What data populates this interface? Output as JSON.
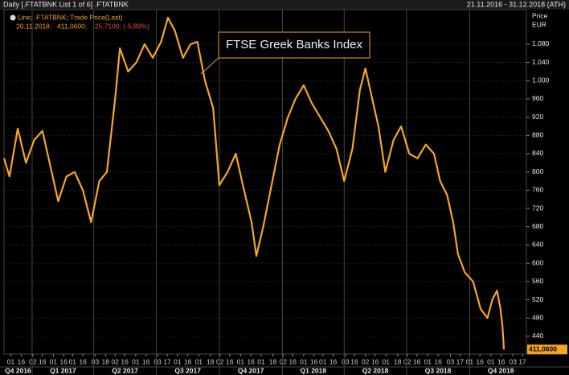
{
  "chart_data": {
    "type": "line",
    "title": "Daily [.FTATBNK List 1 of 6] .FTATBNK",
    "date_range": "21.11.2016 - 31.12.2018 (ATH)",
    "legend_line": "Line; .FTATBNK; Trade Price(Last)",
    "legend_date": "20.11.2018;",
    "legend_value": "411,0600;",
    "legend_change": "-25,7100; (-5,89%)",
    "annotation": "FTSE Greek Banks Index",
    "y_axis_label": "Price",
    "y_axis_unit": "EUR",
    "last_label": "411,0600",
    "grid": true,
    "xlim": [
      "2016-11-21",
      "2018-12-31"
    ],
    "ylim": [
      401,
      1145
    ],
    "yticks": [
      {
        "value": 1080,
        "label": "1.080"
      },
      {
        "value": 1040,
        "label": "1.040"
      },
      {
        "value": 1000,
        "label": "1.000"
      },
      960,
      920,
      880,
      840,
      800,
      760,
      720,
      680,
      640,
      600,
      560,
      520,
      480,
      440
    ],
    "xticks": [
      {
        "value": "2016-12-01",
        "label": "01"
      },
      {
        "value": "2016-12-16",
        "label": "16"
      },
      {
        "value": "2017-01-02",
        "label": "02"
      },
      {
        "value": "2017-01-16",
        "label": "16"
      },
      {
        "value": "2017-02-01",
        "label": "01"
      },
      {
        "value": "2017-02-16",
        "label": "16"
      },
      {
        "value": "2017-03-01",
        "label": "01"
      },
      {
        "value": "2017-03-16",
        "label": "16"
      },
      {
        "value": "2017-04-03",
        "label": "03"
      },
      {
        "value": "2017-04-18",
        "label": "18"
      },
      {
        "value": "2017-05-02",
        "label": "02"
      },
      {
        "value": "2017-05-16",
        "label": "16"
      },
      {
        "value": "2017-06-01",
        "label": "01"
      },
      {
        "value": "2017-06-16",
        "label": "16"
      },
      {
        "value": "2017-07-03",
        "label": "03"
      },
      {
        "value": "2017-07-17",
        "label": "17"
      },
      {
        "value": "2017-08-01",
        "label": "01"
      },
      {
        "value": "2017-08-16",
        "label": "16"
      },
      {
        "value": "2017-09-01",
        "label": "01"
      },
      {
        "value": "2017-09-18",
        "label": "18"
      },
      {
        "value": "2017-10-02",
        "label": "02"
      },
      {
        "value": "2017-10-16",
        "label": "16"
      },
      {
        "value": "2017-11-01",
        "label": "01"
      },
      {
        "value": "2017-11-16",
        "label": "16"
      },
      {
        "value": "2017-12-01",
        "label": "01"
      },
      {
        "value": "2017-12-18",
        "label": "18"
      },
      {
        "value": "2018-01-02",
        "label": "02"
      },
      {
        "value": "2018-01-16",
        "label": "16"
      },
      {
        "value": "2018-02-01",
        "label": "01"
      },
      {
        "value": "2018-02-16",
        "label": "16"
      },
      {
        "value": "2018-03-01",
        "label": "01"
      },
      {
        "value": "2018-03-16",
        "label": "16"
      },
      {
        "value": "2018-04-03",
        "label": "03"
      },
      {
        "value": "2018-04-16",
        "label": "16"
      },
      {
        "value": "2018-05-02",
        "label": "02"
      },
      {
        "value": "2018-05-16",
        "label": "16"
      },
      {
        "value": "2018-06-01",
        "label": "01"
      },
      {
        "value": "2018-06-18",
        "label": "18"
      },
      {
        "value": "2018-07-02",
        "label": "02"
      },
      {
        "value": "2018-07-16",
        "label": "16"
      },
      {
        "value": "2018-08-01",
        "label": "01"
      },
      {
        "value": "2018-08-16",
        "label": "16"
      },
      {
        "value": "2018-09-03",
        "label": "03"
      },
      {
        "value": "2018-09-17",
        "label": "17"
      },
      {
        "value": "2018-10-01",
        "label": "01"
      },
      {
        "value": "2018-10-16",
        "label": "16"
      },
      {
        "value": "2018-11-01",
        "label": "01"
      },
      {
        "value": "2018-11-16",
        "label": "16"
      },
      {
        "value": "2018-12-03",
        "label": "03"
      },
      {
        "value": "2018-12-17",
        "label": "17"
      }
    ],
    "quarters": [
      {
        "value": "2016-10-01",
        "label": "Q4 2016"
      },
      {
        "value": "2017-01-01",
        "label": "Q1 2017"
      },
      {
        "value": "2017-04-01",
        "label": "Q2 2017"
      },
      {
        "value": "2017-07-01",
        "label": "Q3 2017"
      },
      {
        "value": "2017-10-01",
        "label": "Q4 2017"
      },
      {
        "value": "2018-01-01",
        "label": "Q1 2018"
      },
      {
        "value": "2018-04-01",
        "label": "Q2 2018"
      },
      {
        "value": "2018-07-01",
        "label": "Q3 2018"
      },
      {
        "value": "2018-10-01",
        "label": "Q4 2018"
      }
    ],
    "series": [
      {
        "name": ".FTATBNK",
        "color": "#f5a623",
        "x": [
          "2016-11-21",
          "2016-11-29",
          "2016-12-11",
          "2016-12-23",
          "2017-01-04",
          "2017-01-16",
          "2017-01-28",
          "2017-02-08",
          "2017-02-20",
          "2017-03-04",
          "2017-03-16",
          "2017-03-28",
          "2017-04-09",
          "2017-04-20",
          "2017-05-02",
          "2017-05-09",
          "2017-05-21",
          "2017-06-02",
          "2017-06-14",
          "2017-06-26",
          "2017-07-08",
          "2017-07-18",
          "2017-07-28",
          "2017-08-09",
          "2017-08-20",
          "2017-08-30",
          "2017-09-10",
          "2017-09-22",
          "2017-10-01",
          "2017-10-13",
          "2017-10-25",
          "2017-11-06",
          "2017-11-17",
          "2017-11-24",
          "2017-12-04",
          "2017-12-16",
          "2017-12-28",
          "2018-01-09",
          "2018-01-20",
          "2018-02-01",
          "2018-02-13",
          "2018-02-25",
          "2018-03-09",
          "2018-03-21",
          "2018-04-01",
          "2018-04-13",
          "2018-04-24",
          "2018-05-02",
          "2018-05-12",
          "2018-05-21",
          "2018-05-31",
          "2018-06-12",
          "2018-06-23",
          "2018-07-05",
          "2018-07-17",
          "2018-07-29",
          "2018-08-10",
          "2018-08-19",
          "2018-08-29",
          "2018-09-07",
          "2018-09-14",
          "2018-09-24",
          "2018-10-06",
          "2018-10-17",
          "2018-10-27",
          "2018-11-03",
          "2018-11-10",
          "2018-11-15",
          "2018-11-18",
          "2018-11-20"
        ],
        "values": [
          830,
          790,
          895,
          820,
          870,
          890,
          810,
          736,
          790,
          800,
          760,
          690,
          780,
          800,
          960,
          1071,
          1020,
          1040,
          1080,
          1050,
          1085,
          1138,
          1110,
          1050,
          1080,
          1085,
          1000,
          940,
          771,
          800,
          840,
          760,
          690,
          616,
          680,
          770,
          860,
          920,
          960,
          990,
          950,
          920,
          890,
          850,
          780,
          850,
          980,
          1027,
          960,
          900,
          800,
          870,
          900,
          840,
          830,
          860,
          840,
          780,
          750,
          690,
          620,
          580,
          560,
          500,
          480,
          520,
          540,
          500,
          460,
          411.06
        ]
      }
    ]
  }
}
